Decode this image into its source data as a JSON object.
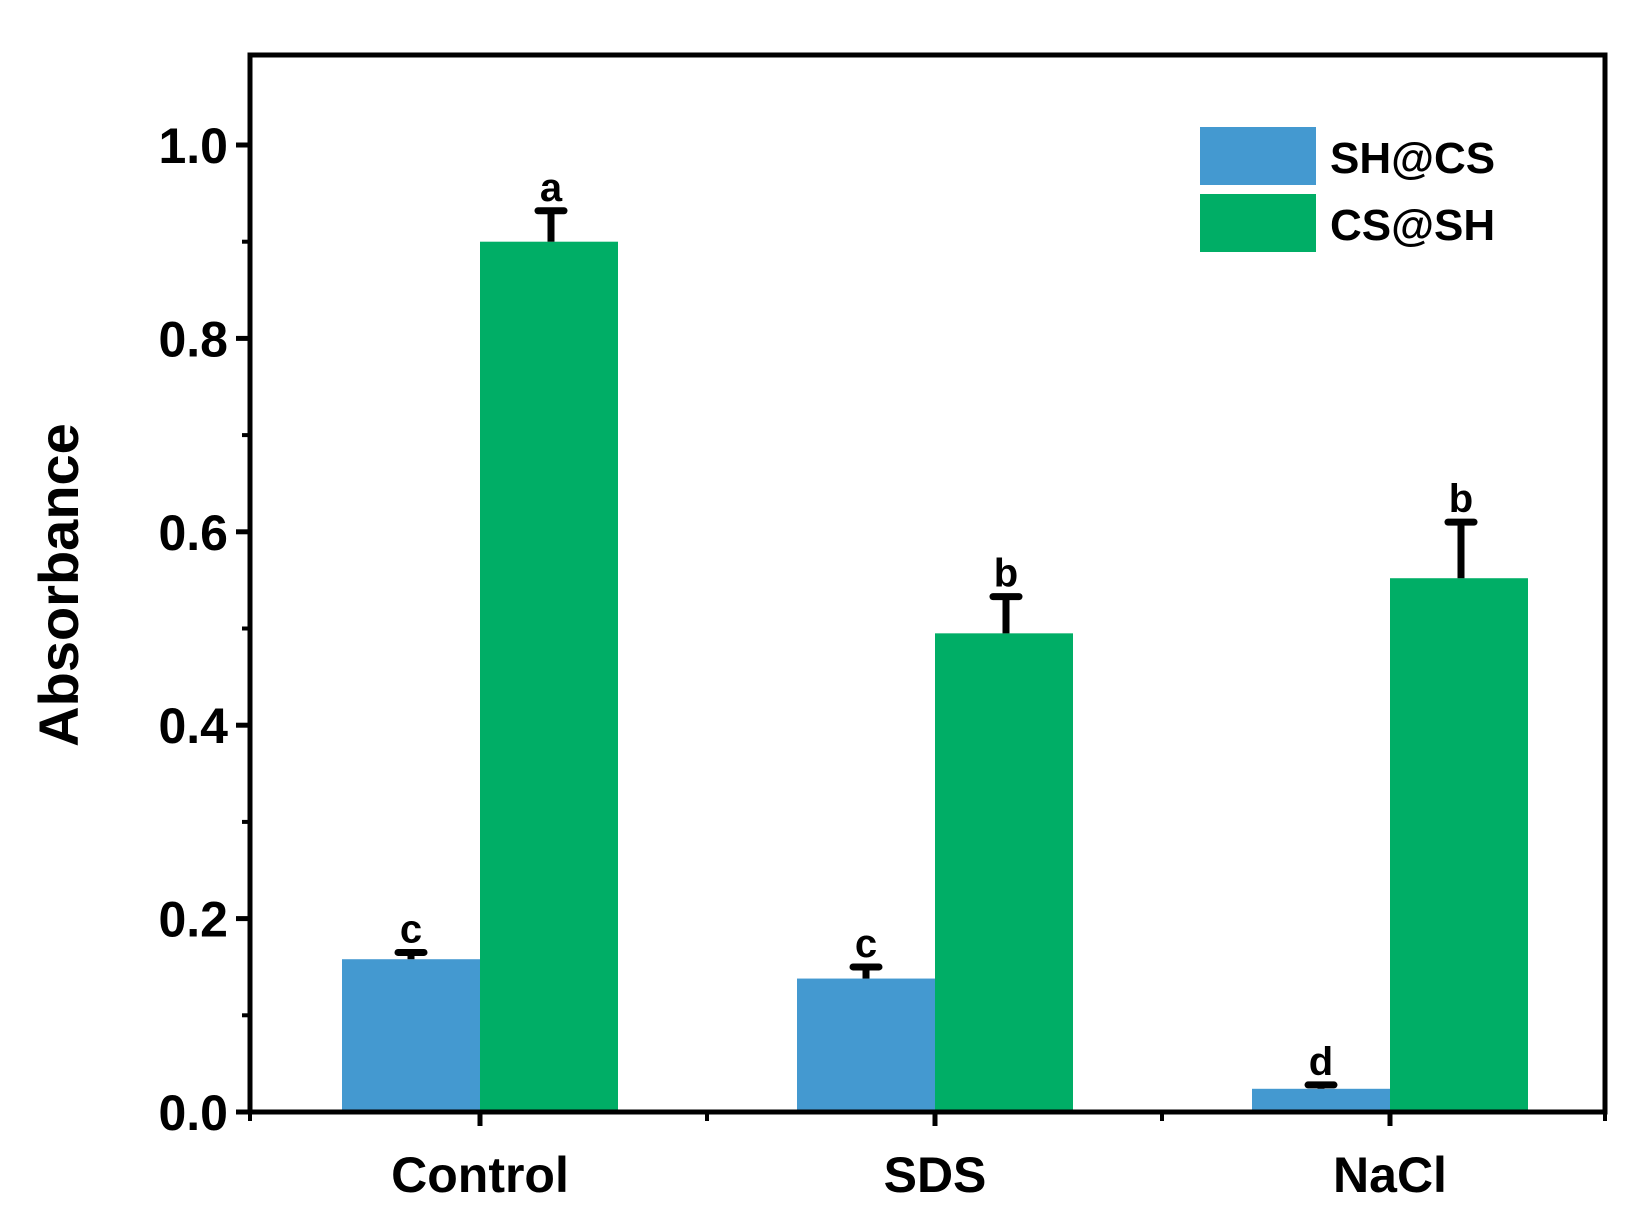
{
  "chart_data": {
    "type": "bar",
    "categories": [
      "Control",
      "SDS",
      "NaCl"
    ],
    "ylabel": "Absorbance",
    "ylim": [
      0,
      1.1
    ],
    "yticks": [
      "0.0",
      "0.2",
      "0.4",
      "0.6",
      "0.8",
      "1.0"
    ],
    "legend_position": "top-right",
    "grid": false,
    "series": [
      {
        "name": "SH@CS",
        "color": "#4499D0",
        "values": [
          0.158,
          0.138,
          0.024
        ],
        "errors": [
          0.007,
          0.012,
          0.004
        ],
        "labels": [
          "c",
          "c",
          "d"
        ]
      },
      {
        "name": "CS@SH",
        "color": "#00AE66",
        "values": [
          0.9,
          0.495,
          0.552
        ],
        "errors": [
          0.032,
          0.038,
          0.058
        ],
        "labels": [
          "a",
          "b",
          "b"
        ]
      }
    ]
  }
}
